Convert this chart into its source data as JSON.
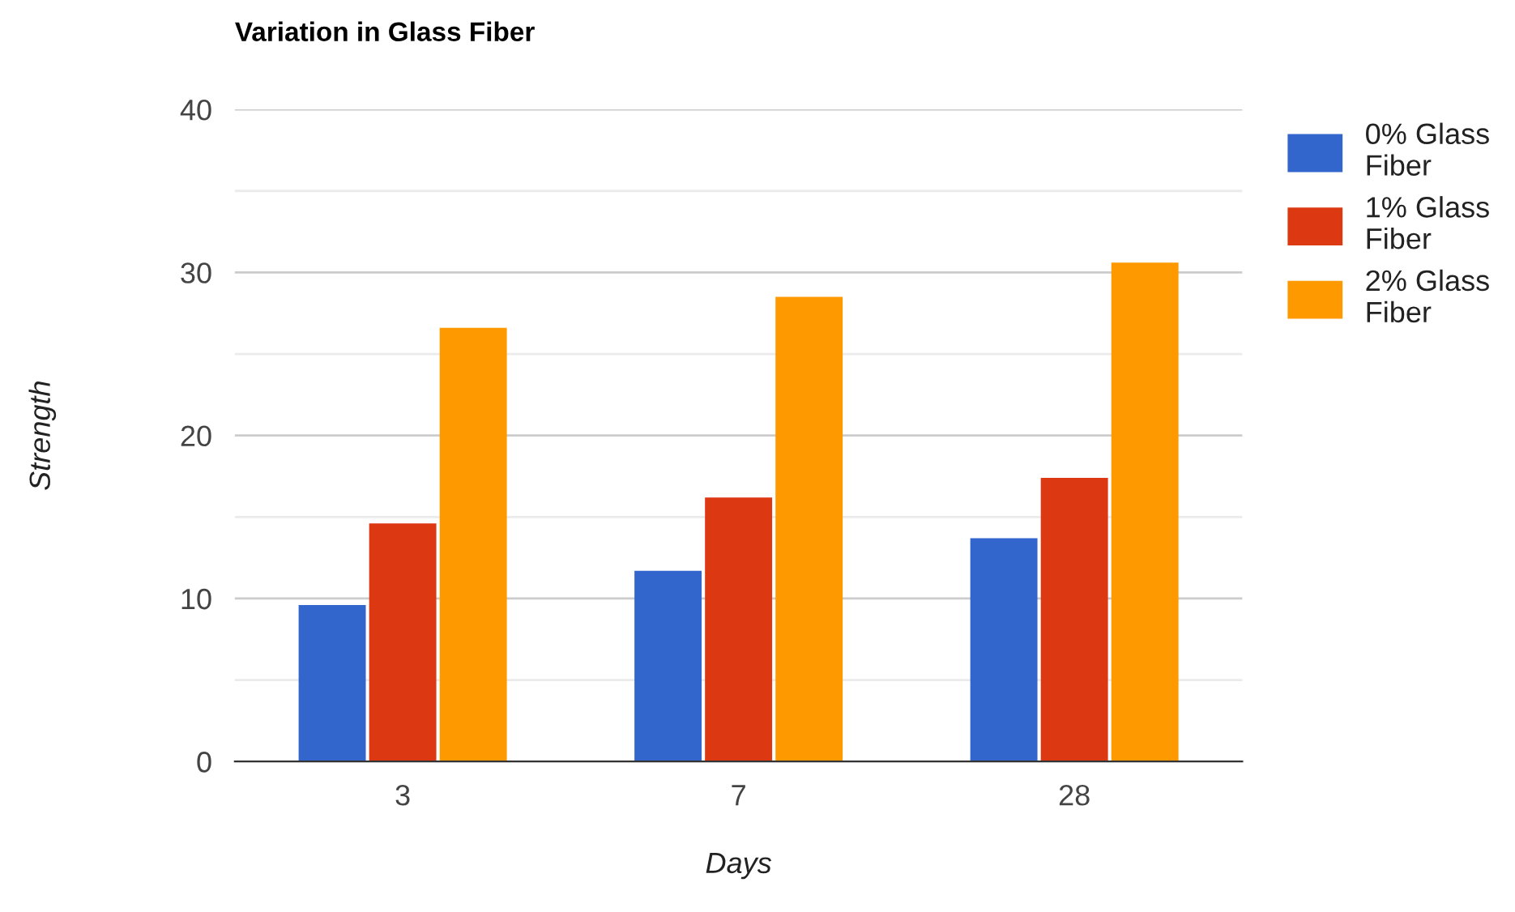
{
  "chart_data": {
    "type": "bar",
    "title": "Variation in Glass Fiber",
    "xlabel": "Days",
    "ylabel": "Strength",
    "categories": [
      "3",
      "7",
      "28"
    ],
    "series": [
      {
        "name": "0% Glass Fiber",
        "color": "#3366cc",
        "values": [
          9.6,
          11.7,
          13.7
        ]
      },
      {
        "name": "1% Glass Fiber",
        "color": "#dc3912",
        "values": [
          14.6,
          16.2,
          17.4
        ]
      },
      {
        "name": "2% Glass Fiber",
        "color": "#ff9900",
        "values": [
          26.6,
          28.5,
          30.6
        ]
      }
    ],
    "ylim": [
      0,
      40
    ],
    "yticks": [
      0,
      {
        "value": 5,
        "label": null
      },
      10,
      {
        "value": 15,
        "label": null
      },
      20,
      {
        "value": 25,
        "label": null
      },
      30,
      {
        "value": 35,
        "label": null
      },
      40
    ],
    "grid": "y",
    "legend": "right"
  }
}
